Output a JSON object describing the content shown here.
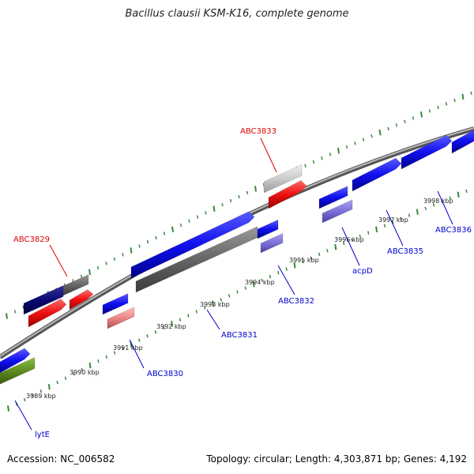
{
  "title": "Bacillus clausii KSM-K16, complete genome",
  "footer": {
    "accession": "Accession: NC_006582",
    "summary": "Topology: circular; Length: 4,303,871 bp; Genes: 4,192"
  },
  "colors": {
    "forward_cds": "#1010ee",
    "reverse_cds": "#ee1111",
    "dark_gray": "#666666",
    "light_gray": "#cccccc",
    "navy": "#0a0a70",
    "olive": "#5b8a1c",
    "pink": "#ee8888",
    "lavender": "#7b70d8",
    "tick": "#3a8a3a",
    "label_red": "#dd0000",
    "label_blue": "#0000cc"
  },
  "ticks": [
    {
      "label": "3989 kbp"
    },
    {
      "label": "3990 kbp"
    },
    {
      "label": "3991 kbp"
    },
    {
      "label": "3992 kbp"
    },
    {
      "label": "3993 kbp"
    },
    {
      "label": "3994 kbp"
    },
    {
      "label": "3995 kbp"
    },
    {
      "label": "3996 kbp"
    },
    {
      "label": "3997 kbp"
    },
    {
      "label": "3998 kbp"
    }
  ],
  "gene_labels": [
    {
      "name": "ABC3829",
      "color": "red"
    },
    {
      "name": "ABC3833",
      "color": "red"
    },
    {
      "name": "lytE",
      "color": "blue"
    },
    {
      "name": "ABC3830",
      "color": "blue"
    },
    {
      "name": "ABC3831",
      "color": "blue"
    },
    {
      "name": "ABC3832",
      "color": "blue"
    },
    {
      "name": "acpD",
      "color": "blue"
    },
    {
      "name": "ABC3835",
      "color": "blue"
    },
    {
      "name": "ABC3836",
      "color": "blue"
    }
  ]
}
